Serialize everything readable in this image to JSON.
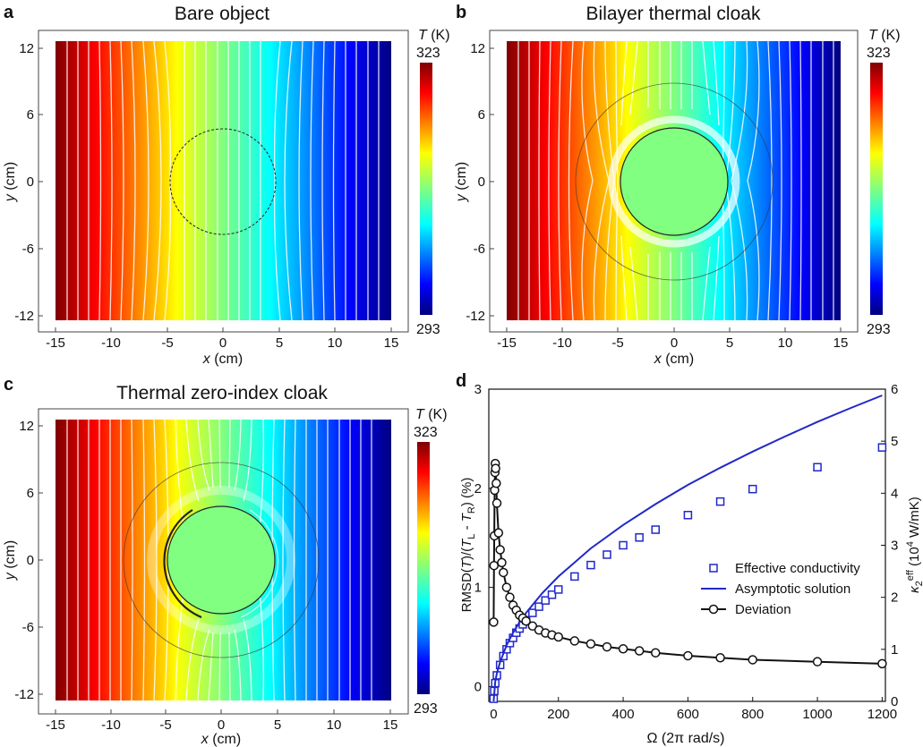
{
  "figure": {
    "panels": [
      {
        "letter": "a",
        "title": "Bare object",
        "xlabel_var": "x",
        "xlabel_unit": " (cm)",
        "ylabel_var": "y",
        "ylabel_unit": " (cm)",
        "xticks": [
          "-15",
          "-10",
          "-5",
          "0",
          "5",
          "10",
          "15"
        ],
        "yticks": [
          "12",
          "6",
          "0",
          "-6",
          "-12"
        ],
        "colorbar": {
          "label_var": "T",
          "label_unit": " (K)",
          "max": "323",
          "min": "293"
        }
      },
      {
        "letter": "b",
        "title": "Bilayer thermal cloak",
        "xlabel_var": "x",
        "xlabel_unit": " (cm)",
        "ylabel_var": "y",
        "ylabel_unit": " (cm)",
        "xticks": [
          "-15",
          "-10",
          "-5",
          "0",
          "5",
          "10",
          "15"
        ],
        "yticks": [
          "12",
          "6",
          "0",
          "-6",
          "-12"
        ],
        "colorbar": {
          "label_var": "T",
          "label_unit": " (K)",
          "max": "323",
          "min": "293"
        }
      },
      {
        "letter": "c",
        "title": "Thermal zero-index cloak",
        "xlabel_var": "x",
        "xlabel_unit": " (cm)",
        "ylabel_var": "y",
        "ylabel_unit": " (cm)",
        "xticks": [
          "-15",
          "-10",
          "-5",
          "0",
          "5",
          "10",
          "15"
        ],
        "yticks": [
          "12",
          "6",
          "0",
          "-6",
          "-12"
        ],
        "colorbar": {
          "label_var": "T",
          "label_unit": " (K)",
          "max": "323",
          "min": "293"
        }
      }
    ],
    "panel_d": {
      "letter": "d",
      "xlabel": "Ω (2π rad/s)",
      "ylabel_left": "RMSD(T)/(T_L - T_R) (%)",
      "ylabel_right": "κ2eff (10^4 W/mK)"
    }
  },
  "chart_data": [
    {
      "type": "heatmap",
      "title": "Bare object",
      "xlabel": "x (cm)",
      "ylabel": "y (cm)",
      "xlim": [
        -15,
        15
      ],
      "ylim": [
        -12.5,
        12.5
      ],
      "colorbar_range_K": [
        293,
        323
      ],
      "object_radius_cm": 5
    },
    {
      "type": "heatmap",
      "title": "Bilayer thermal cloak",
      "xlabel": "x (cm)",
      "ylabel": "y (cm)",
      "xlim": [
        -15,
        15
      ],
      "ylim": [
        -12.5,
        12.5
      ],
      "colorbar_range_K": [
        293,
        323
      ],
      "object_radius_cm": 5,
      "cloak_outer_radius_cm": 9
    },
    {
      "type": "heatmap",
      "title": "Thermal zero-index cloak",
      "xlabel": "x (cm)",
      "ylabel": "y (cm)",
      "xlim": [
        -15,
        15
      ],
      "ylim": [
        -12.5,
        12.5
      ],
      "colorbar_range_K": [
        293,
        323
      ],
      "object_radius_cm": 5,
      "cloak_outer_radius_cm": 9
    },
    {
      "type": "line",
      "xlabel": "Ω (2π rad/s)",
      "ylabel": "RMSD(T)/(T_L - T_R) (%)",
      "ylabel_right": "κ2eff (10^4 W/mK)",
      "xlim": [
        -15,
        1210
      ],
      "ylim": [
        -0.15,
        3
      ],
      "ylim_right": [
        0,
        6
      ],
      "xticks": [
        0,
        200,
        400,
        600,
        800,
        1000,
        1200
      ],
      "yticks": [
        0,
        1,
        2,
        3
      ],
      "yticks_right": [
        0,
        1,
        2,
        3,
        4,
        5,
        6
      ],
      "legend_position": "right",
      "series": [
        {
          "name": "Effective conductivity",
          "axis": "right",
          "marker": "square",
          "color": "#2128c8",
          "x": [
            0,
            2,
            5,
            10,
            20,
            30,
            40,
            50,
            60,
            70,
            80,
            90,
            100,
            120,
            140,
            160,
            180,
            200,
            250,
            300,
            350,
            400,
            450,
            500,
            600,
            700,
            800,
            1000,
            1200
          ],
          "y": [
            0.05,
            0.2,
            0.35,
            0.5,
            0.7,
            0.87,
            1.0,
            1.12,
            1.22,
            1.32,
            1.4,
            1.48,
            1.56,
            1.7,
            1.82,
            1.94,
            2.05,
            2.15,
            2.4,
            2.62,
            2.82,
            3.0,
            3.15,
            3.3,
            3.58,
            3.84,
            4.08,
            4.5,
            4.88
          ]
        },
        {
          "name": "Asymptotic solution",
          "axis": "right",
          "marker": "none",
          "color": "#2128c8",
          "x": [
            0,
            5,
            10,
            20,
            40,
            60,
            80,
            100,
            150,
            200,
            300,
            400,
            500,
            600,
            700,
            800,
            900,
            1000,
            1100,
            1200
          ],
          "y": [
            0,
            0.38,
            0.54,
            0.76,
            1.08,
            1.32,
            1.52,
            1.7,
            2.08,
            2.4,
            2.94,
            3.39,
            3.79,
            4.16,
            4.49,
            4.8,
            5.09,
            5.37,
            5.63,
            5.88
          ]
        },
        {
          "name": "Deviation",
          "axis": "left",
          "marker": "circle",
          "color": "#111111",
          "x": [
            0,
            1,
            2,
            3,
            4,
            5,
            6,
            8,
            10,
            15,
            20,
            25,
            30,
            40,
            50,
            60,
            70,
            80,
            90,
            100,
            120,
            140,
            160,
            180,
            200,
            250,
            300,
            350,
            400,
            450,
            500,
            600,
            700,
            800,
            1000,
            1200
          ],
          "y": [
            0.65,
            1.22,
            1.52,
            1.98,
            2.16,
            2.25,
            2.2,
            2.05,
            1.85,
            1.55,
            1.38,
            1.25,
            1.15,
            1.0,
            0.9,
            0.82,
            0.77,
            0.72,
            0.69,
            0.66,
            0.61,
            0.57,
            0.54,
            0.52,
            0.5,
            0.46,
            0.43,
            0.4,
            0.38,
            0.36,
            0.34,
            0.31,
            0.29,
            0.27,
            0.25,
            0.23
          ]
        }
      ]
    }
  ]
}
